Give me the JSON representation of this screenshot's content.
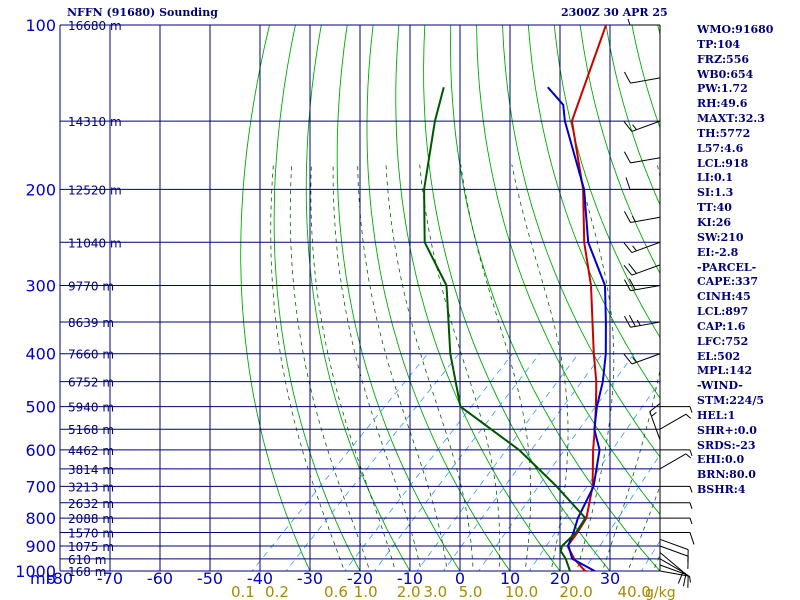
{
  "header": {
    "station": "NFFN (91680) Sounding",
    "time": "2300Z 30 APR 25"
  },
  "indices": [
    "WMO:91680",
    "TP:104",
    "FRZ:556",
    "WB0:654",
    "PW:1.72",
    "RH:49.6",
    "MAXT:32.3",
    "TH:5772",
    "L57:4.6",
    "LCL:918",
    "LI:0.1",
    "SI:1.3",
    "TT:40",
    "KI:26",
    "SW:210",
    "EI:-2.8",
    "-PARCEL-",
    "CAPE:337",
    "CINH:45",
    "LCL:897",
    "CAP:1.6",
    "LFC:752",
    "EL:502",
    "MPL:142",
    "-WIND-",
    "STM:224/5",
    "HEL:1",
    "SHR+:0.0",
    "SRDS:-23",
    "EHI:0.0",
    "BRN:80.0",
    "BSHR:4"
  ],
  "colors": {
    "grid": "#00007a",
    "dry_adiabat": "#00aa00",
    "moist_adiabat": "#006400",
    "mixing_ratio": "#3399ff",
    "temperature": "#cc0000",
    "parcel": "#0000cc",
    "dewpoint": "#005500",
    "axis_text": "#0000cc",
    "mixing_text": "#aa8800",
    "wind": "#000000"
  },
  "chart_data": {
    "type": "skew-t",
    "pressure_axis": {
      "label": "mb",
      "ticks": [
        100,
        200,
        300,
        400,
        500,
        600,
        700,
        800,
        900,
        1000
      ],
      "tick_labels": [
        "100",
        "200",
        "300",
        "400",
        "500",
        "600",
        "700",
        "800",
        "900",
        "1000"
      ],
      "range": [
        100,
        1000
      ],
      "scale": "log"
    },
    "temperature_axis": {
      "ticks": [
        -80,
        -70,
        -60,
        -50,
        -40,
        -30,
        -20,
        -10,
        0,
        10,
        20,
        30
      ],
      "tick_labels": [
        "-80",
        "-70",
        "-60",
        "-50",
        "-40",
        "-30",
        "-20",
        "-10",
        "0",
        "10",
        "20",
        "30"
      ],
      "range": [
        -80,
        30
      ]
    },
    "mixing_ratio_labels": {
      "values": [
        0.1,
        0.2,
        0.6,
        1.0,
        2.0,
        3.0,
        5.0,
        10.0,
        20.0,
        40.0
      ],
      "labels": [
        "0.1",
        "0.2",
        "0.6",
        "1.0",
        "2.0",
        "3.0",
        "5.0",
        "10.0",
        "20.0",
        "40.0"
      ],
      "unit": "g/kg"
    },
    "height_labels": [
      {
        "p": 100,
        "text": "16680 m"
      },
      {
        "p": 150,
        "text": "14310 m"
      },
      {
        "p": 200,
        "text": "12520 m"
      },
      {
        "p": 250,
        "text": "11040 m"
      },
      {
        "p": 300,
        "text": "9770 m"
      },
      {
        "p": 350,
        "text": "8639 m"
      },
      {
        "p": 400,
        "text": "7660 m"
      },
      {
        "p": 450,
        "text": "6752 m"
      },
      {
        "p": 500,
        "text": "5940 m"
      },
      {
        "p": 550,
        "text": "5168 m"
      },
      {
        "p": 600,
        "text": "4462 m"
      },
      {
        "p": 650,
        "text": "3814 m"
      },
      {
        "p": 700,
        "text": "3213 m"
      },
      {
        "p": 750,
        "text": "2632 m"
      },
      {
        "p": 800,
        "text": "2088 m"
      },
      {
        "p": 850,
        "text": "1570 m"
      },
      {
        "p": 900,
        "text": "1075 m"
      },
      {
        "p": 950,
        "text": "610 m"
      },
      {
        "p": 1000,
        "text": "168 m"
      }
    ],
    "series": [
      {
        "name": "temperature",
        "points": [
          {
            "p": 1008,
            "t": 28.0
          },
          {
            "p": 1000,
            "t": 25.0
          },
          {
            "p": 950,
            "t": 20.4
          },
          {
            "p": 900,
            "t": 16.5
          },
          {
            "p": 850,
            "t": 15.8
          },
          {
            "p": 800,
            "t": 14.7
          },
          {
            "p": 700,
            "t": 9.6
          },
          {
            "p": 600,
            "t": 2.4
          },
          {
            "p": 550,
            "t": -1.4
          },
          {
            "p": 500,
            "t": -5.7
          },
          {
            "p": 450,
            "t": -10.6
          },
          {
            "p": 400,
            "t": -16.7
          },
          {
            "p": 300,
            "t": -30.9
          },
          {
            "p": 250,
            "t": -40.9
          },
          {
            "p": 200,
            "t": -51.7
          },
          {
            "p": 150,
            "t": -67.6
          },
          {
            "p": 100,
            "t": -80.0
          }
        ]
      },
      {
        "name": "parcel",
        "points": [
          {
            "p": 1008,
            "t": 28.0
          },
          {
            "p": 950,
            "t": 20.0
          },
          {
            "p": 897,
            "t": 16.5
          },
          {
            "p": 850,
            "t": 15.0
          },
          {
            "p": 800,
            "t": 13.0
          },
          {
            "p": 700,
            "t": 9.8
          },
          {
            "p": 600,
            "t": 3.7
          },
          {
            "p": 550,
            "t": -1.5
          },
          {
            "p": 500,
            "t": -5.5
          },
          {
            "p": 450,
            "t": -9.3
          },
          {
            "p": 400,
            "t": -14.3
          },
          {
            "p": 350,
            "t": -20.6
          },
          {
            "p": 300,
            "t": -28.1
          },
          {
            "p": 250,
            "t": -40.1
          },
          {
            "p": 200,
            "t": -51.5
          },
          {
            "p": 150,
            "t": -69.0
          },
          {
            "p": 140,
            "t": -72.6
          },
          {
            "p": 130,
            "t": -79.2
          }
        ]
      },
      {
        "name": "dewpoint",
        "points": [
          {
            "p": 1000,
            "t": 22.0
          },
          {
            "p": 950,
            "t": 18.7
          },
          {
            "p": 920,
            "t": 16.2
          },
          {
            "p": 900,
            "t": 15.4
          },
          {
            "p": 850,
            "t": 15.5
          },
          {
            "p": 800,
            "t": 14.5
          },
          {
            "p": 700,
            "t": 2.4
          },
          {
            "p": 600,
            "t": -12.4
          },
          {
            "p": 500,
            "t": -32.8
          },
          {
            "p": 400,
            "t": -45.4
          },
          {
            "p": 300,
            "t": -59.8
          },
          {
            "p": 250,
            "t": -72.8
          },
          {
            "p": 200,
            "t": -83.5
          },
          {
            "p": 150,
            "t": -95.0
          },
          {
            "p": 130,
            "t": -100.0
          }
        ]
      }
    ],
    "wind_barbs": [
      {
        "p": 1000,
        "dir": 100,
        "spd": 5
      },
      {
        "p": 975,
        "dir": 110,
        "spd": 10
      },
      {
        "p": 950,
        "dir": 120,
        "spd": 10
      },
      {
        "p": 925,
        "dir": 130,
        "spd": 10
      },
      {
        "p": 900,
        "dir": 110,
        "spd": 10
      },
      {
        "p": 875,
        "dir": 110,
        "spd": 10
      },
      {
        "p": 850,
        "dir": 90,
        "spd": 10
      },
      {
        "p": 800,
        "dir": 90,
        "spd": 5
      },
      {
        "p": 750,
        "dir": 90,
        "spd": 5
      },
      {
        "p": 700,
        "dir": 90,
        "spd": 5
      },
      {
        "p": 650,
        "dir": 60,
        "spd": 5
      },
      {
        "p": 600,
        "dir": 90,
        "spd": 5
      },
      {
        "p": 575,
        "dir": 340,
        "spd": 15
      },
      {
        "p": 550,
        "dir": 60,
        "spd": 5
      },
      {
        "p": 500,
        "dir": 90,
        "spd": 5
      },
      {
        "p": 400,
        "dir": 250,
        "spd": 15
      },
      {
        "p": 350,
        "dir": 260,
        "spd": 25
      },
      {
        "p": 300,
        "dir": 260,
        "spd": 20
      },
      {
        "p": 275,
        "dir": 250,
        "spd": 20
      },
      {
        "p": 250,
        "dir": 250,
        "spd": 15
      },
      {
        "p": 225,
        "dir": 260,
        "spd": 15
      },
      {
        "p": 200,
        "dir": 270,
        "spd": 10
      },
      {
        "p": 175,
        "dir": 260,
        "spd": 10
      },
      {
        "p": 150,
        "dir": 250,
        "spd": 15
      },
      {
        "p": 125,
        "dir": 260,
        "spd": 10
      },
      {
        "p": 100,
        "dir": 270,
        "spd": 5
      }
    ]
  }
}
